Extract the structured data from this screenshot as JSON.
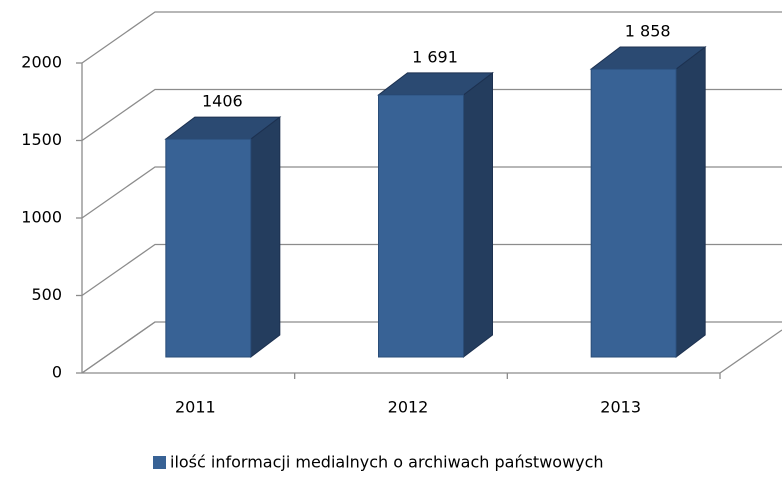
{
  "chart_data": {
    "type": "bar3d",
    "categories": [
      "2011",
      "2012",
      "2013"
    ],
    "series": [
      {
        "name": "ilość informacji medialnych o archiwach państwowych",
        "color": "#386295",
        "values": [
          1406,
          1691,
          1858
        ],
        "value_labels": [
          "1406",
          "1 691",
          "1 858"
        ]
      }
    ],
    "ylim": [
      0,
      2000
    ],
    "yticks": [
      0,
      500,
      1000,
      1500,
      2000
    ],
    "grid": true,
    "legend": "bottom"
  }
}
